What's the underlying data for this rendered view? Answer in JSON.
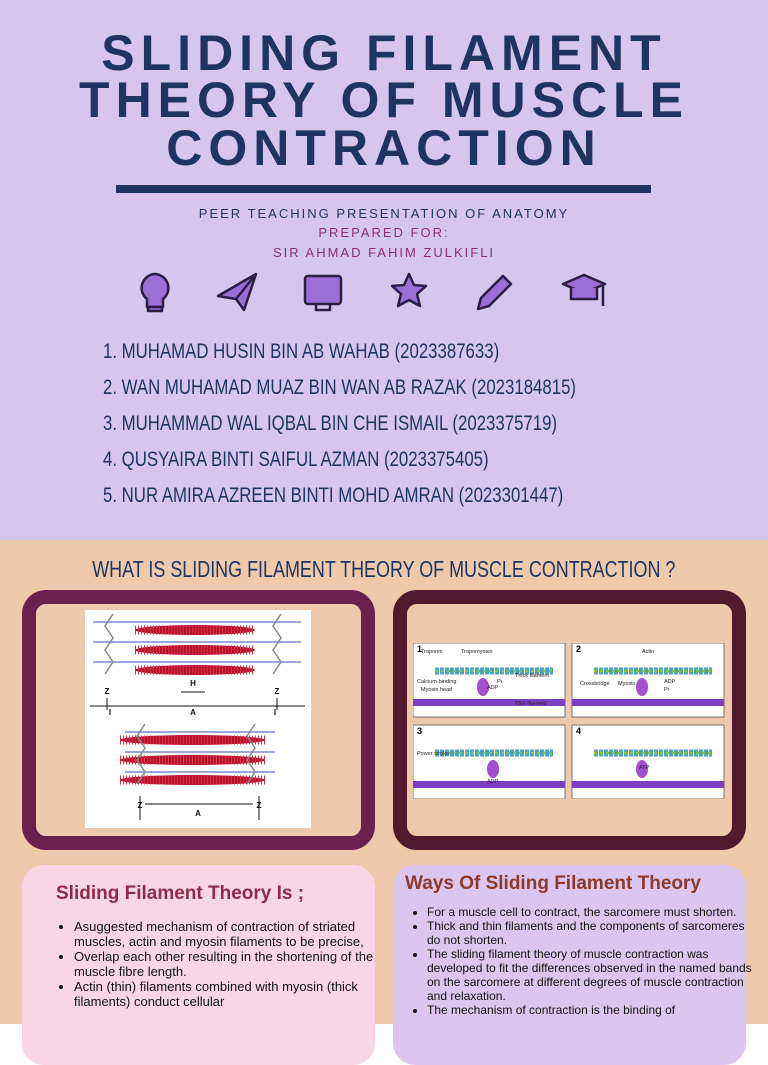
{
  "header": {
    "title_lines": [
      "SLIDING FILAMENT",
      "THEORY OF MUSCLE",
      "CONTRACTION"
    ],
    "subtitle": "PEER TEACHING PRESENTATION OF ANATOMY",
    "prepared_for": "PREPARED FOR:",
    "presenter": "SIR AHMAD FAHIM ZULKIFLI"
  },
  "members": [
    "1. MUHAMAD HUSIN BIN AB WAHAB (2023387633)",
    "2. WAN MUHAMAD MUAZ BIN WAN AB RAZAK (2023184815)",
    "3. MUHAMMAD WAL IQBAL BIN CHE ISMAIL (2023375719)",
    "4. QUSYAIRA BINTI SAIFUL AZMAN (2023375405)",
    "5. NUR AMIRA AZREEN BINTI MOHD AMRAN (2023301447)"
  ],
  "section": {
    "heading": "WHAT IS SLIDING FILAMENT THEORY OF MUSCLE CONTRACTION ?"
  },
  "figure_sarcomere": {
    "labels": [
      "Z",
      "H",
      "Z",
      "I",
      "A",
      "I",
      "Z",
      "A",
      "Z"
    ]
  },
  "figure_crossbridge": {
    "panels": [
      {
        "number": "1",
        "labels": [
          "Troponin",
          "Tropomyosin",
          "Thick filament",
          "Calcium-binding",
          "Myosin head",
          "ADP",
          "Pi",
          "Thin filament"
        ]
      },
      {
        "number": "2",
        "labels": [
          "Actin",
          "Crossbridge",
          "Myosin",
          "ADP",
          "Pi"
        ]
      },
      {
        "number": "3",
        "labels": [
          "Power stroke",
          "ADP"
        ]
      },
      {
        "number": "4",
        "labels": [
          "ATP"
        ]
      }
    ]
  },
  "cards": [
    {
      "title": "Sliding Filament Theory Is ;",
      "bullets": [
        "Asuggested mechanism of contraction of striated muscles, actin and myosin filaments to be precise,",
        "Overlap each other resulting in the shortening of the muscle fibre length.",
        "Actin (thin) filaments combined with myosin (thick filaments) conduct cellular"
      ]
    },
    {
      "title": "Ways Of Sliding Filament Theory",
      "bullets": [
        "For a muscle cell to contract, the sarcomere must shorten.",
        "Thick and thin filaments and the components of sarcomeres do not shorten.",
        "The sliding filament theory of muscle contraction was developed to fit the differences observed in the named bands on the sarcomere at different degrees of muscle contraction and relaxation.",
        "The mechanism of contraction is the binding of"
      ]
    }
  ]
}
